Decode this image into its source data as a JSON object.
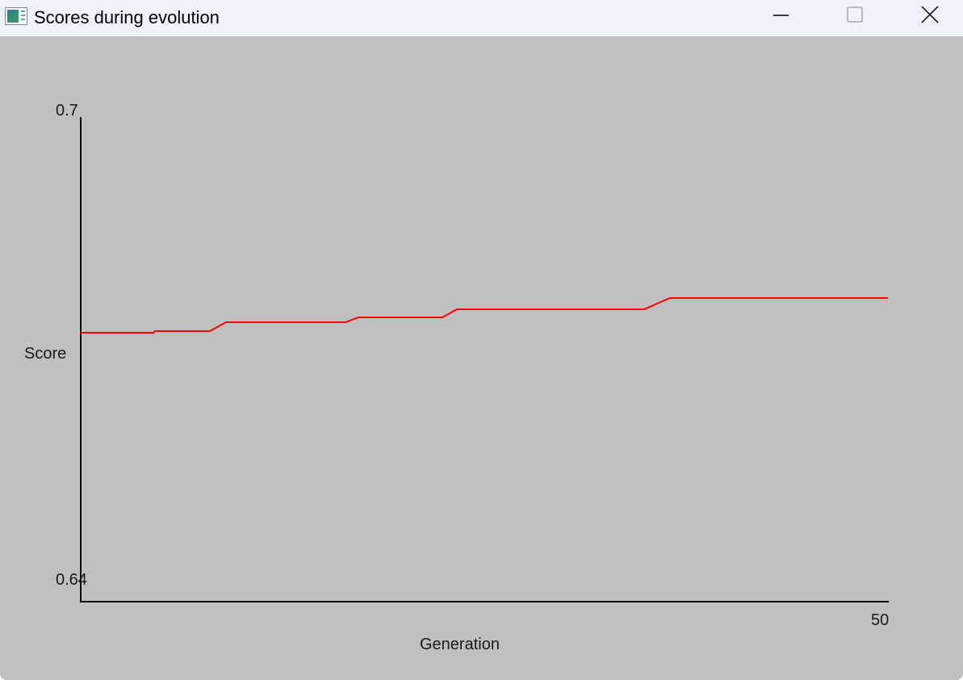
{
  "window": {
    "title": "Scores during evolution",
    "icon": "chart-app-icon",
    "controls": [
      "minimize-icon",
      "maximize-icon",
      "close-icon"
    ]
  },
  "chart_data": {
    "type": "line",
    "xlabel": "Generation",
    "ylabel": "Score",
    "xlim": [
      0,
      50
    ],
    "ylim": [
      0.64,
      0.7
    ],
    "y_tick_labels": [
      "0.7",
      "0.64"
    ],
    "x_tick_labels": [
      "50"
    ],
    "grid": false,
    "series": [
      {
        "color": "#ff0000",
        "points": [
          [
            0,
            0.6733
          ],
          [
            4.5,
            0.6733
          ],
          [
            4.6,
            0.6735
          ],
          [
            8.0,
            0.6735
          ],
          [
            9.0,
            0.6746
          ],
          [
            16.4,
            0.6746
          ],
          [
            17.2,
            0.6752
          ],
          [
            22.4,
            0.6752
          ],
          [
            23.3,
            0.6762
          ],
          [
            34.9,
            0.6762
          ],
          [
            36.5,
            0.6776
          ],
          [
            50,
            0.6776
          ]
        ]
      }
    ]
  }
}
